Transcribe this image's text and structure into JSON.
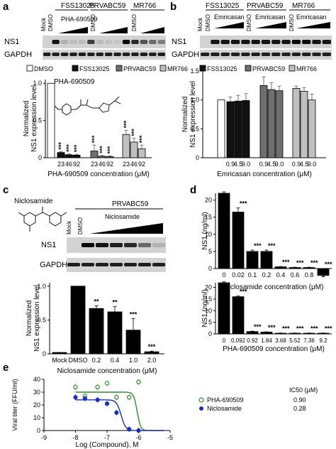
{
  "panel_letters": [
    "a",
    "b",
    "c",
    "d",
    "e"
  ],
  "legend": [
    {
      "label": "DMSO",
      "color": "#ffffff"
    },
    {
      "label": "FSS13025",
      "color": "#111111"
    },
    {
      "label": "PRVABC59",
      "color": "#6e6e6e"
    },
    {
      "label": "MR766",
      "color": "#c0c0c0"
    }
  ],
  "blot_a": {
    "groups": [
      "FSS13025",
      "PRVABC59",
      "MR766"
    ],
    "mock_label": "Mock",
    "lane_labels": [
      "DMSO",
      "DMSO",
      "DMSO"
    ],
    "drug_label": "PHA-690509",
    "row_labels": [
      "NS1",
      "GAPDH"
    ]
  },
  "blot_b": {
    "groups": [
      "FSS13025",
      "PRVABC59",
      "MR766"
    ],
    "mock_label": "Mock",
    "lane_labels": [
      "DMSO",
      "DMSO",
      "DMSO"
    ],
    "drug_label": "Emricasan",
    "row_labels": [
      "NS1",
      "GAPDH"
    ]
  },
  "blot_c": {
    "compound_label": "Niclosamide",
    "group": "PRVABC59",
    "lane_labels": [
      "Mock",
      "DMSO"
    ],
    "drug_label": "Niclosamide",
    "row_labels": [
      "NS1",
      "GAPDH"
    ]
  },
  "chart_data": [
    {
      "id": "a",
      "type": "bar",
      "annotation": "PHA-690509",
      "ylabel": "Normalized NS1 expression level",
      "xlabel": "PHA-690509 concentration (μM)",
      "yticks": [
        "0",
        "0.5",
        "1.0"
      ],
      "ylim": [
        0,
        1.05
      ],
      "categories": [
        "",
        "23",
        "46",
        "92",
        "23",
        "46",
        "92",
        "23",
        "46",
        "92"
      ],
      "values": [
        1.0,
        0.07,
        0.04,
        0.035,
        0.09,
        0.02,
        0.015,
        0.31,
        0.21,
        0.12
      ],
      "errors": [
        0,
        0.01,
        0.01,
        0.01,
        0.08,
        0.01,
        0.01,
        0.06,
        0.05,
        0.05
      ],
      "colors": [
        "#ffffff",
        "#111111",
        "#111111",
        "#111111",
        "#6e6e6e",
        "#6e6e6e",
        "#6e6e6e",
        "#c0c0c0",
        "#c0c0c0",
        "#c0c0c0"
      ],
      "sig": [
        "",
        "***",
        "***",
        "***",
        "***",
        "***",
        "***",
        "***",
        "***",
        "***"
      ]
    },
    {
      "id": "b",
      "type": "bar",
      "ylabel": "Normalized NS1 expression level",
      "xlabel": "Emricasan concentration (μM)",
      "yticks": [
        "0",
        "0.5",
        "1.0",
        "1.5"
      ],
      "ylim": [
        0,
        1.5
      ],
      "categories": [
        "",
        "0.9",
        "4.5",
        "9.0",
        "0.9",
        "4.5",
        "9.0",
        "0.9",
        "4.5",
        "9.0"
      ],
      "values": [
        1.0,
        0.97,
        0.98,
        0.99,
        1.25,
        1.18,
        1.16,
        1.2,
        1.15,
        1.0
      ],
      "errors": [
        0,
        0.08,
        0.1,
        0.12,
        0.15,
        0.12,
        0.08,
        0.04,
        0.06,
        0.1
      ],
      "colors": [
        "#ffffff",
        "#111111",
        "#111111",
        "#111111",
        "#6e6e6e",
        "#6e6e6e",
        "#6e6e6e",
        "#c0c0c0",
        "#c0c0c0",
        "#c0c0c0"
      ],
      "sig": [
        "",
        "",
        "",
        "",
        "",
        "",
        "",
        "",
        "",
        ""
      ]
    },
    {
      "id": "c",
      "type": "bar",
      "ylabel": "Normalized NS1 expression level",
      "xlabel": "Niclosamide concentration (μM)",
      "yticks": [
        "0",
        "0.5",
        "1.0"
      ],
      "ylim": [
        0,
        1.05
      ],
      "categories": [
        "Mock",
        "DMSO",
        "0.2",
        "0.4",
        "1.0",
        "2.0"
      ],
      "values": [
        0.02,
        1.0,
        0.67,
        0.62,
        0.35,
        0.03
      ],
      "errors": [
        0,
        0,
        0.04,
        0.08,
        0.17,
        0.01
      ],
      "colors": [
        "#000000",
        "#000000",
        "#000000",
        "#000000",
        "#000000",
        "#000000"
      ],
      "sig": [
        "",
        "",
        "**",
        "**",
        "***",
        "***"
      ]
    },
    {
      "id": "d1",
      "type": "bar",
      "ylabel": "NS1 (ng/ml)",
      "xlabel": "Niclosamide concentration (μM)",
      "yticks": [
        "0",
        "5",
        "10",
        "15",
        "20"
      ],
      "ylim": [
        0,
        22
      ],
      "categories": [
        "0",
        "0.02",
        "0.1",
        "0.2",
        "0.4",
        "0.6",
        "0.8",
        "1"
      ],
      "values": [
        22,
        16.5,
        5,
        5,
        0.5,
        0.3,
        0.3,
        -2
      ],
      "errors": [
        0.4,
        1.2,
        0.4,
        0.4,
        0.1,
        0.1,
        0.1,
        0.3
      ],
      "sig": [
        "",
        "***",
        "***",
        "***",
        "***",
        "***",
        "***",
        "***"
      ]
    },
    {
      "id": "d2",
      "type": "bar",
      "ylabel": "NS1 (ng/ml)",
      "xlabel": "PHA-690509 concentration (μM)",
      "yticks": [
        "0",
        "5",
        "10",
        "15",
        "20"
      ],
      "ylim": [
        0,
        22
      ],
      "categories": [
        "0",
        "0.092",
        "0.92",
        "1.84",
        "3.68",
        "5.52",
        "7.36",
        "9.2"
      ],
      "values": [
        22,
        16,
        1,
        0.8,
        0.3,
        0.3,
        0.3,
        0.3
      ],
      "errors": [
        0.4,
        0.3,
        0.2,
        0.1,
        0.1,
        0.1,
        0.1,
        0.1
      ],
      "sig": [
        "",
        "***",
        "***",
        "***",
        "***",
        "***",
        "***",
        "***"
      ]
    },
    {
      "id": "e",
      "type": "scatter",
      "ylabel": "Viral titer (FFU/ml)",
      "xlabel": "Log (Compound), M",
      "xlim": [
        -9,
        -5
      ],
      "ylim": [
        0,
        40
      ],
      "xticks": [
        "-9",
        "-8",
        "-7",
        "-6",
        "-5"
      ],
      "yticks": [
        "0",
        "10",
        "20",
        "30",
        "40"
      ],
      "ic50_header": "IC50 (μM)",
      "series": [
        {
          "name": "PHA-690509",
          "ic50": "0.90",
          "color": "#2e8b2e",
          "x": [
            -8,
            -7.7,
            -7.3,
            -7,
            -6.7,
            -6.3,
            -6
          ],
          "y": [
            34,
            27,
            34,
            37,
            26,
            26,
            38
          ]
        },
        {
          "name": "Niclosamide",
          "ic50": "0.28",
          "color": "#1830c0",
          "x": [
            -8,
            -7.7,
            -7.3,
            -7,
            -6.7,
            -6.3,
            -6
          ],
          "y": [
            26,
            25,
            24,
            21,
            14,
            1,
            0
          ]
        }
      ]
    }
  ]
}
